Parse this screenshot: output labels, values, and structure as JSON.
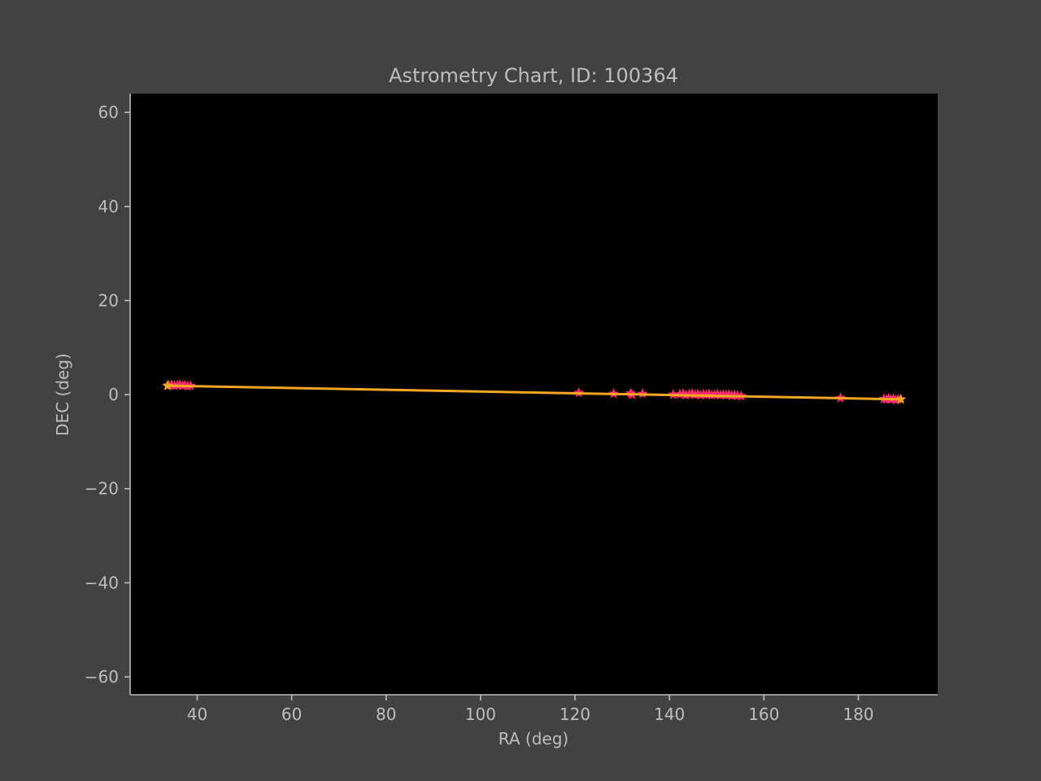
{
  "chart_data": {
    "type": "scatter",
    "title": "Astrometry Chart, ID: 100364",
    "xlabel": "RA (deg)",
    "ylabel": "DEC (deg)",
    "xlim": [
      25.8,
      196.8
    ],
    "ylim": [
      -63.8,
      64
    ],
    "xticks": [
      40,
      60,
      80,
      100,
      120,
      140,
      160,
      180
    ],
    "yticks": [
      60,
      40,
      20,
      0,
      -20,
      -40,
      -60
    ],
    "ytick_labels": [
      "60",
      "40",
      "20",
      "0",
      "−20",
      "−40",
      "−60"
    ],
    "grid": false,
    "colors": {
      "background": "#424242",
      "plot_area": "#000000",
      "axis": "#bdbdbd",
      "stars": "#ff2a6d",
      "trend": "#f5a623",
      "endpoint": "#4a3cff"
    },
    "series": [
      {
        "kind": "star-markers",
        "points": [
          [
            34.0,
            2.0
          ],
          [
            34.6,
            2.1
          ],
          [
            35.2,
            1.9
          ],
          [
            35.8,
            2.0
          ],
          [
            36.3,
            2.1
          ],
          [
            36.9,
            1.9
          ],
          [
            37.4,
            2.0
          ],
          [
            38.0,
            1.8
          ],
          [
            38.6,
            1.9
          ],
          [
            120.8,
            0.4
          ],
          [
            128.2,
            0.2
          ],
          [
            131.8,
            0.3
          ],
          [
            132.1,
            0.0
          ],
          [
            134.3,
            0.2
          ],
          [
            140.8,
            0.0
          ],
          [
            142.2,
            0.1
          ],
          [
            142.9,
            0.2
          ],
          [
            143.5,
            -0.1
          ],
          [
            144.2,
            0.1
          ],
          [
            144.8,
            0.2
          ],
          [
            145.4,
            0.0
          ],
          [
            146.0,
            0.1
          ],
          [
            146.6,
            -0.1
          ],
          [
            147.2,
            0.1
          ],
          [
            147.8,
            0.0
          ],
          [
            148.4,
            0.1
          ],
          [
            149.0,
            -0.1
          ],
          [
            149.6,
            0.0
          ],
          [
            150.2,
            0.1
          ],
          [
            150.8,
            -0.1
          ],
          [
            151.4,
            0.0
          ],
          [
            152.0,
            -0.1
          ],
          [
            152.6,
            0.0
          ],
          [
            153.2,
            -0.2
          ],
          [
            153.8,
            -0.1
          ],
          [
            154.4,
            -0.2
          ],
          [
            155.2,
            -0.3
          ],
          [
            176.2,
            -0.7
          ],
          [
            185.4,
            -0.9
          ],
          [
            185.9,
            -1.0
          ],
          [
            186.4,
            -0.8
          ],
          [
            186.9,
            -1.0
          ],
          [
            187.4,
            -0.9
          ],
          [
            187.9,
            -1.1
          ],
          [
            188.4,
            -1.0
          ]
        ]
      },
      {
        "kind": "trend-line",
        "points": [
          [
            33.7,
            1.9
          ],
          [
            189.0,
            -1.0
          ]
        ]
      }
    ]
  }
}
